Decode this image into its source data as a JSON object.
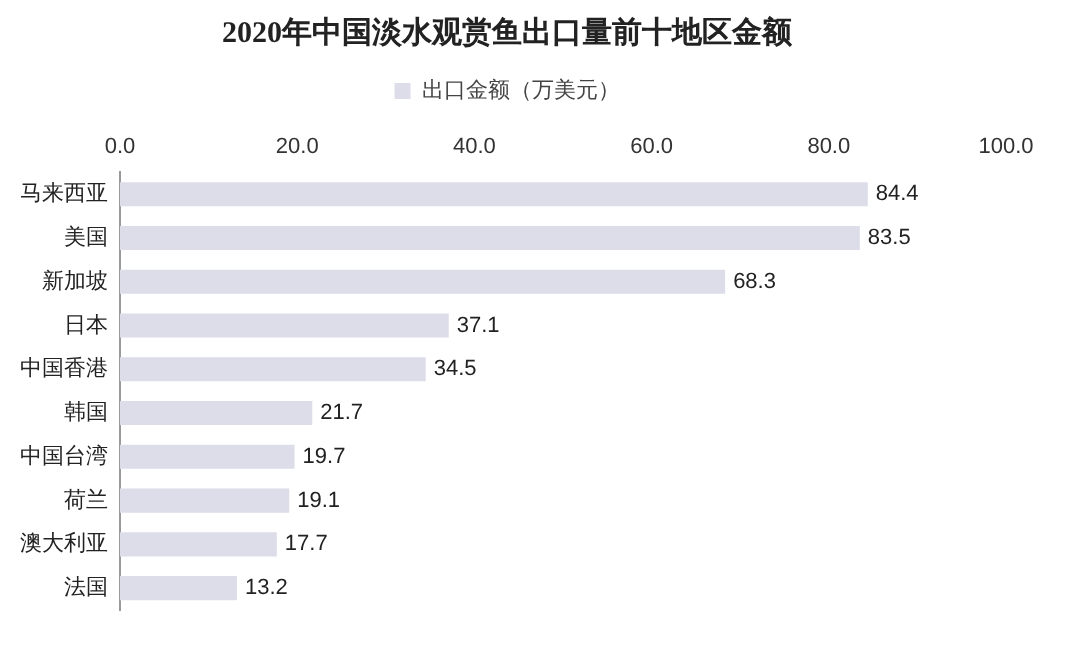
{
  "chart_data": {
    "type": "bar",
    "orientation": "horizontal",
    "title": "2020年中国淡水观赏鱼出口量前十地区金额",
    "categories": [
      "马来西亚",
      "美国",
      "新加坡",
      "日本",
      "中国香港",
      "韩国",
      "中国台湾",
      "荷兰",
      "澳大利亚",
      "法国"
    ],
    "series": [
      {
        "name": "出口金额（万美元）",
        "color": "#dcdde8",
        "values": [
          84.4,
          83.5,
          68.3,
          37.1,
          34.5,
          21.7,
          19.7,
          19.1,
          17.7,
          13.2
        ]
      }
    ],
    "xlim": [
      0,
      100
    ],
    "xticks": [
      {
        "value": 0,
        "label": "0.0"
      },
      {
        "value": 20,
        "label": "20.0"
      },
      {
        "value": 40,
        "label": "40.0"
      },
      {
        "value": 60,
        "label": "60.0"
      },
      {
        "value": 80,
        "label": "80.0"
      },
      {
        "value": 100,
        "label": "100.0"
      }
    ],
    "data_labels": true,
    "legend": "top",
    "grid": false
  }
}
